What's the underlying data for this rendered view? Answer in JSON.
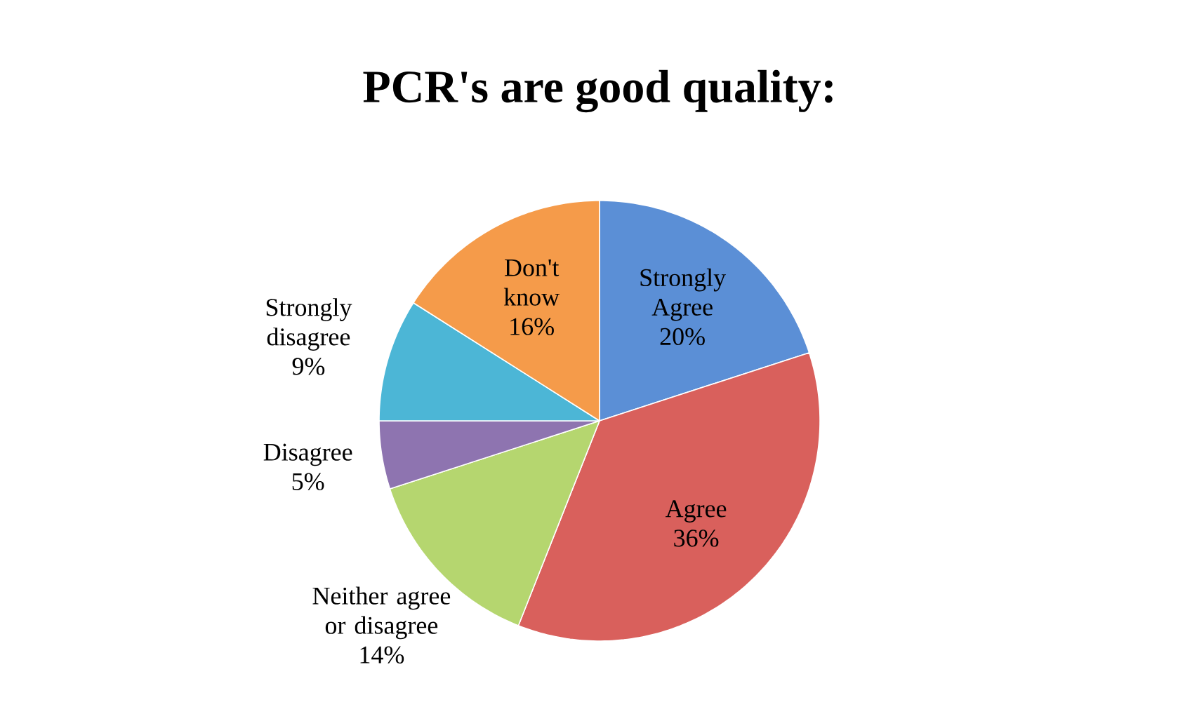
{
  "chart_data": {
    "type": "pie",
    "title": "PCR's are good quality:",
    "categories": [
      "Strongly Agree",
      "Agree",
      "Neither agree or disagree",
      "Disagree",
      "Strongly disagree",
      "Don't know"
    ],
    "values": [
      20,
      36,
      14,
      5,
      9,
      16
    ],
    "value_labels": [
      "20%",
      "36%",
      "14%",
      "5%",
      "9%",
      "16%"
    ],
    "colors": [
      "#5b8fd6",
      "#d9605c",
      "#b5d66f",
      "#8e74b0",
      "#4cb6d6",
      "#f59b4a"
    ],
    "legend": false
  }
}
